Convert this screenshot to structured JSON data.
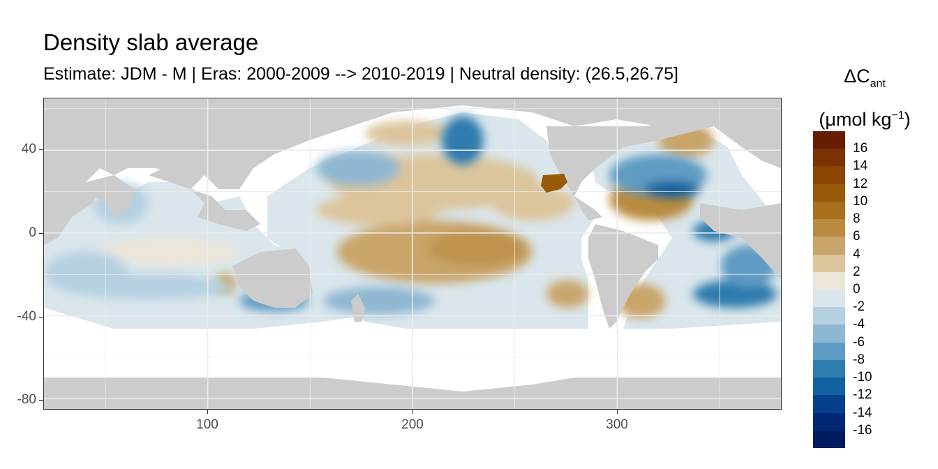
{
  "title": "Density slab average",
  "subtitle": "Estimate: JDM - M | Eras: 2000-2009 --> 2010-2019 | Neutral density: (26.5,26.75]",
  "legend": {
    "symbol": "ΔC",
    "symbol_sub": "ant",
    "unit_open": "(μmol kg",
    "unit_sup": "−1",
    "unit_close": ")",
    "labels": [
      "16",
      "14",
      "12",
      "10",
      "8",
      "6",
      "4",
      "2",
      "0",
      "-2",
      "-4",
      "-6",
      "-8",
      "-10",
      "-12",
      "-14",
      "-16"
    ],
    "colors": [
      "#671c04",
      "#7c3203",
      "#8b4604",
      "#985a09",
      "#a86f1d",
      "#b98b40",
      "#c9a56b",
      "#dcc59c",
      "#ece6d9",
      "#dae6ec",
      "#b5d0e1",
      "#8fb7d2",
      "#5f9bc2",
      "#2f7cae",
      "#11609f",
      "#053f8a",
      "#022774",
      "#001b60"
    ],
    "boundaries": [
      18,
      16,
      14,
      12,
      10,
      8,
      6,
      4,
      2,
      0,
      -2,
      -4,
      -6,
      -8,
      -10,
      -12,
      -14,
      -16,
      -18
    ]
  },
  "axes": {
    "x_ticks": [
      "100",
      "200",
      "300"
    ],
    "y_ticks": [
      "40",
      "0",
      "-40",
      "-80"
    ],
    "xlim": [
      20,
      380
    ],
    "ylim": [
      -85,
      65
    ],
    "grid": true
  },
  "map_colors": {
    "land": "#cccccc",
    "panel": "#ffffff",
    "grid": "#ebebeb"
  }
}
